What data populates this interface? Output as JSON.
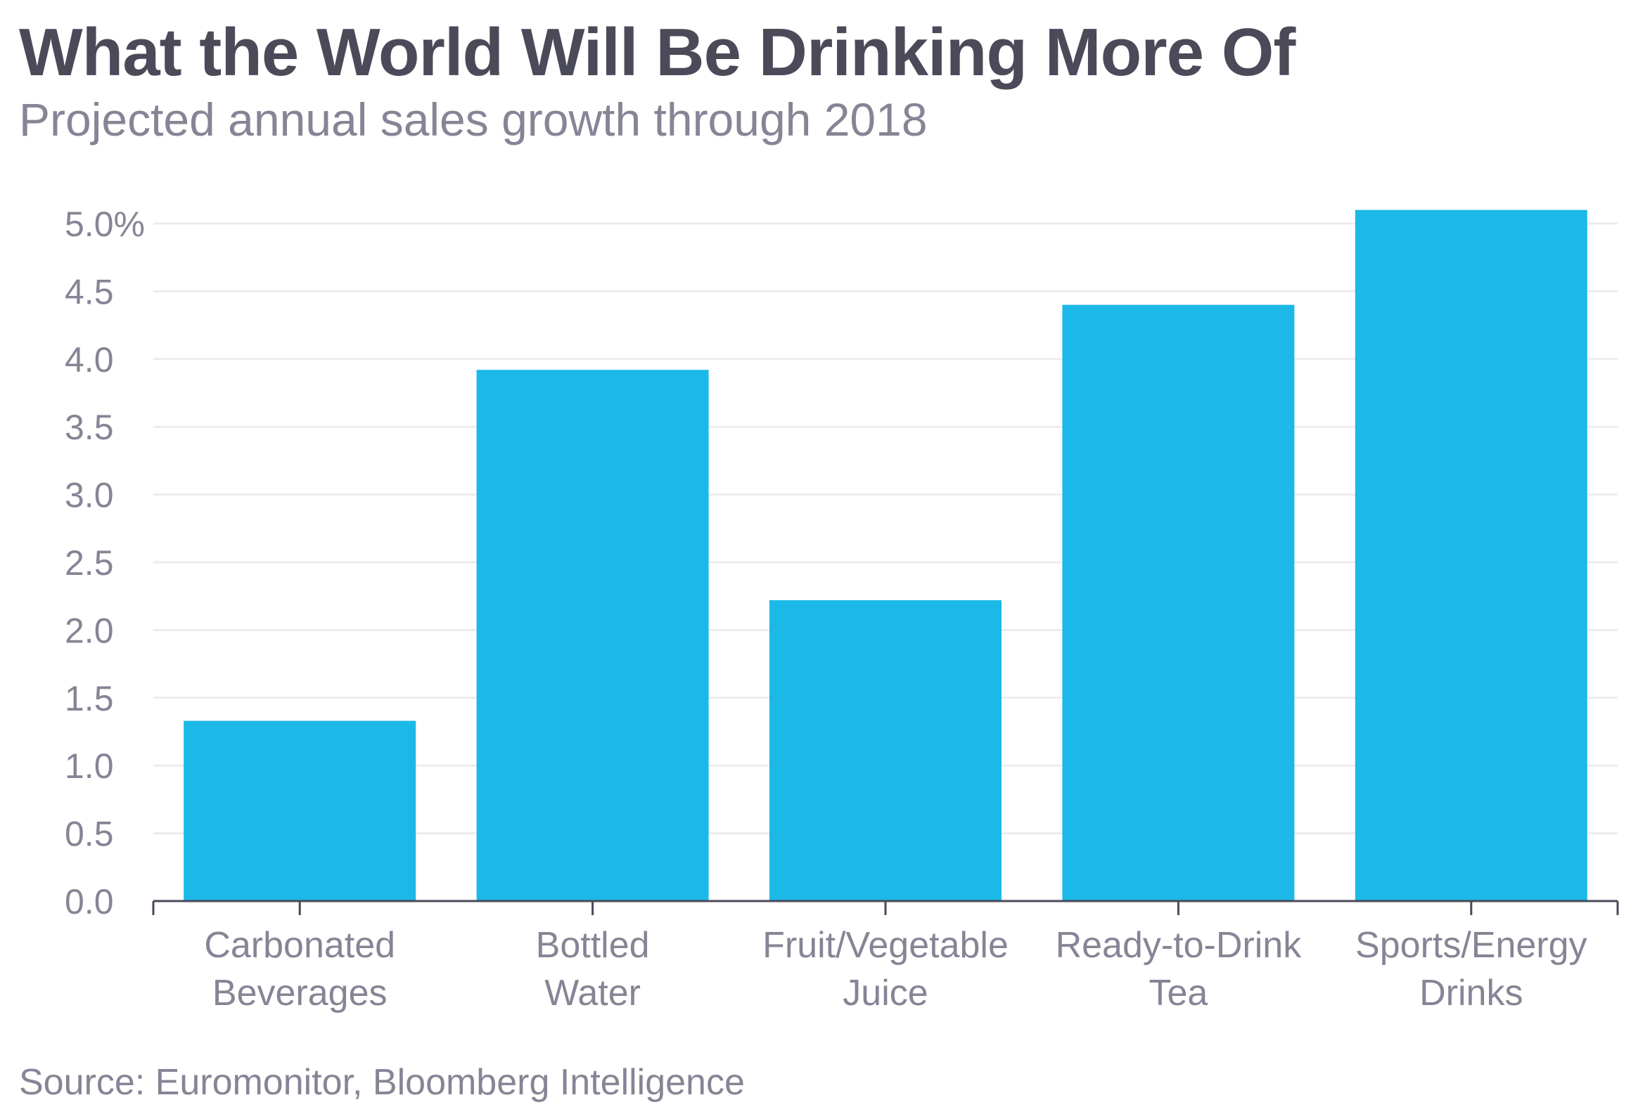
{
  "chart_data": {
    "type": "bar",
    "title": "What the World Will Be Drinking More Of",
    "subtitle": "Projected annual sales growth through 2018",
    "source": "Source: Euromonitor, Bloomberg Intelligence",
    "categories": [
      [
        "Carbonated",
        "Beverages"
      ],
      [
        "Bottled",
        "Water"
      ],
      [
        "Fruit/Vegetable",
        "Juice"
      ],
      [
        "Ready-to-Drink",
        "Tea"
      ],
      [
        "Sports/Energy",
        "Drinks"
      ]
    ],
    "values": [
      1.33,
      3.92,
      2.22,
      4.4,
      5.1
    ],
    "ylim": [
      0,
      5
    ],
    "yticks": [
      "0.0",
      "0.5",
      "1.0",
      "1.5",
      "2.0",
      "2.5",
      "3.0",
      "3.5",
      "4.0",
      "4.5",
      "5.0%"
    ],
    "xlabel": "",
    "ylabel": "",
    "grid": true,
    "bar_color": "#1cb9e8",
    "grid_color": "#ececef",
    "axis_color": "#4a4a59"
  }
}
